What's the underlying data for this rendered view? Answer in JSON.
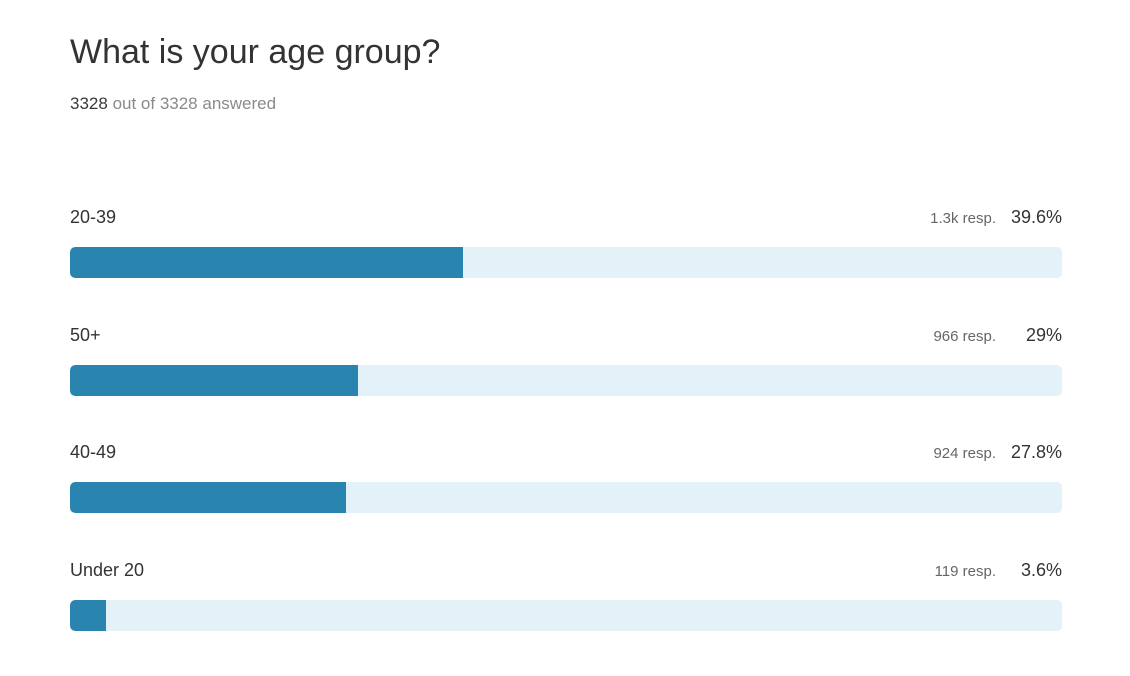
{
  "question": {
    "title": "What is your age group?",
    "answered_count": "3328",
    "answered_suffix": "out of 3328 answered"
  },
  "colors": {
    "bar_fill": "#2985b0",
    "bar_track": "#e3f1f8"
  },
  "chart_data": {
    "type": "bar",
    "orientation": "horizontal",
    "title": "What is your age group?",
    "categories": [
      "20-39",
      "50+",
      "40-49",
      "Under 20"
    ],
    "values": [
      39.6,
      29,
      27.8,
      3.6
    ],
    "responses": [
      "1.3k resp.",
      "966 resp.",
      "924 resp.",
      "119 resp."
    ],
    "percent_labels": [
      "39.6%",
      "29%",
      "27.8%",
      "3.6%"
    ],
    "xlim": [
      0,
      100
    ],
    "grid": false
  }
}
